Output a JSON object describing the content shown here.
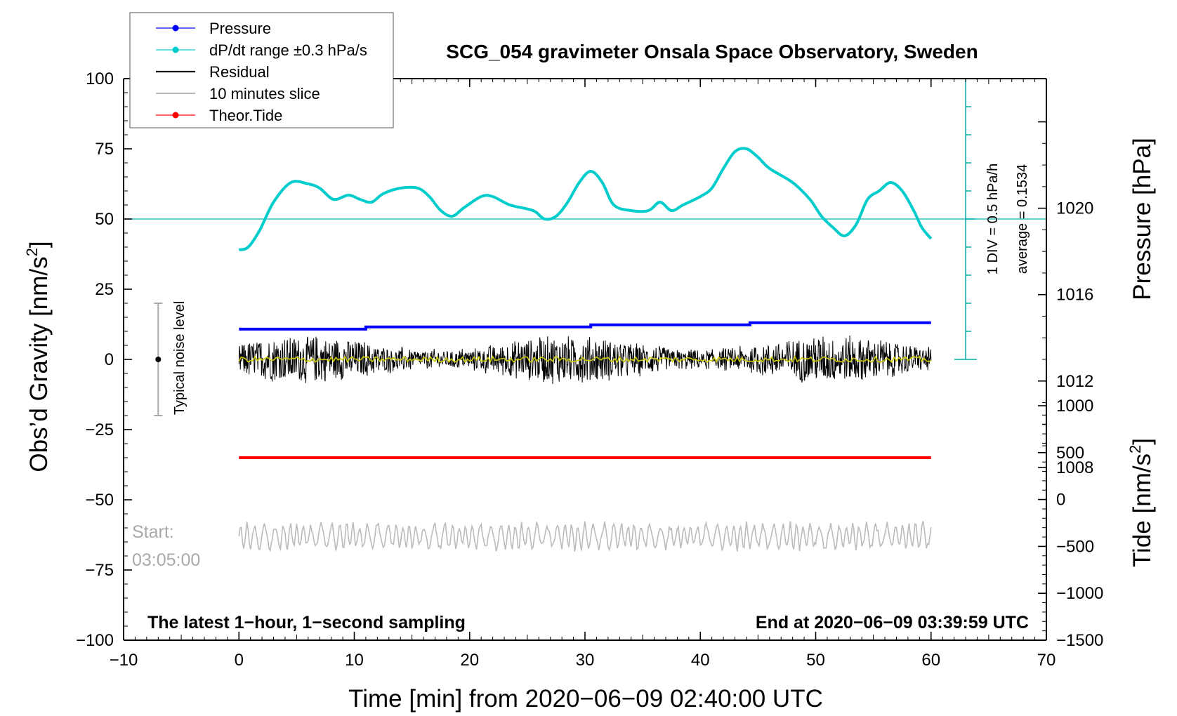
{
  "chart_data": {
    "type": "line",
    "title": "SCG_054 gravimeter Onsala Space Observatory, Sweden",
    "xlabel": "Time [min] from 2020−06−09 02:40:00 UTC",
    "xlim": [
      -10,
      70
    ],
    "x_ticks": [
      -10,
      0,
      10,
      20,
      30,
      40,
      50,
      60,
      70
    ],
    "x_tick_labels": [
      "−10",
      "0",
      "10",
      "20",
      "30",
      "40",
      "50",
      "60",
      "70"
    ],
    "left_axis": {
      "label": "Obs’d Gravity [nm/s",
      "label_sup": "2",
      "label_close": "]",
      "ylim": [
        -100,
        100
      ],
      "ticks": [
        -100,
        -75,
        -50,
        -25,
        0,
        25,
        50,
        75,
        100
      ],
      "tick_labels": [
        "−100",
        "−75",
        "−50",
        "−25",
        "0",
        "25",
        "50",
        "75",
        "100"
      ]
    },
    "pressure_axis": {
      "label": "Pressure [hPa]",
      "range": [
        1000,
        1026
      ],
      "ticks": [
        1008,
        1012,
        1016,
        1020
      ],
      "tick_labels": [
        "1008",
        "1012",
        "1016",
        "1020"
      ]
    },
    "tide_axis": {
      "label": "Tide [nm/s",
      "label_sup": "2",
      "label_close": "]",
      "range": [
        -1500,
        1000
      ],
      "ticks": [
        -1500,
        -1000,
        -500,
        0,
        500,
        1000
      ],
      "tick_labels": [
        "−1500",
        "−1000",
        "−500",
        "0",
        "500",
        "1000"
      ]
    },
    "legend": {
      "placement": "top-left",
      "entries": [
        {
          "label": "Pressure",
          "color": "#0000ff",
          "marker": true
        },
        {
          "label": "dP/dt range ±0.3 hPa/s",
          "color": "#00cccc",
          "marker": true
        },
        {
          "label": "Residual",
          "color": "#000000",
          "marker": false
        },
        {
          "label": "10 minutes slice",
          "color": "#bbbbbb",
          "marker": false
        },
        {
          "label": "Theor.Tide",
          "color": "#ff0000",
          "marker": true
        }
      ]
    },
    "series": [
      {
        "name": "Pressure",
        "axis": "pressure",
        "color": "#0000ff",
        "points": [
          [
            0,
            1014.4
          ],
          [
            11,
            1014.4
          ],
          [
            11,
            1014.5
          ],
          [
            30.5,
            1014.5
          ],
          [
            30.5,
            1014.6
          ],
          [
            44.3,
            1014.6
          ],
          [
            44.3,
            1014.7
          ],
          [
            60,
            1014.7
          ]
        ]
      },
      {
        "name": "dP/dt range ±0.3 hPa/s",
        "axis": "gravity",
        "color": "#00cccc",
        "points": [
          [
            0,
            39
          ],
          [
            0.8,
            40
          ],
          [
            1.8,
            46
          ],
          [
            3,
            56
          ],
          [
            4.5,
            63
          ],
          [
            6,
            62.5
          ],
          [
            7,
            61
          ],
          [
            8.2,
            57
          ],
          [
            9.5,
            58.5
          ],
          [
            10.5,
            57
          ],
          [
            11.5,
            56
          ],
          [
            12.5,
            59
          ],
          [
            14,
            61
          ],
          [
            15.5,
            61
          ],
          [
            16.5,
            58
          ],
          [
            17.5,
            53
          ],
          [
            18.5,
            51
          ],
          [
            19.5,
            54
          ],
          [
            21,
            58
          ],
          [
            22,
            58
          ],
          [
            23.5,
            55
          ],
          [
            25.5,
            53
          ],
          [
            26.5,
            50
          ],
          [
            27.5,
            51
          ],
          [
            28.5,
            56
          ],
          [
            29.5,
            63
          ],
          [
            30.5,
            67
          ],
          [
            31.5,
            63
          ],
          [
            32.5,
            55
          ],
          [
            34,
            53
          ],
          [
            35.5,
            53
          ],
          [
            36.5,
            56
          ],
          [
            37.5,
            53
          ],
          [
            38.5,
            55
          ],
          [
            40,
            58
          ],
          [
            41,
            61
          ],
          [
            42,
            68
          ],
          [
            43,
            74
          ],
          [
            44,
            75
          ],
          [
            45,
            72
          ],
          [
            46,
            68
          ],
          [
            48,
            63
          ],
          [
            49.5,
            57
          ],
          [
            50.5,
            51
          ],
          [
            51.5,
            47
          ],
          [
            52.5,
            44
          ],
          [
            53.5,
            48
          ],
          [
            54.5,
            57
          ],
          [
            55.5,
            60
          ],
          [
            56.5,
            63
          ],
          [
            57.5,
            60
          ],
          [
            58.5,
            53
          ],
          [
            59.2,
            47
          ],
          [
            60,
            43
          ]
        ]
      },
      {
        "name": "Residual",
        "axis": "gravity",
        "color": "#000000",
        "x_range": [
          0,
          60
        ],
        "center": 0,
        "amplitude_max": 10
      },
      {
        "name": "Residual smoothed",
        "axis": "gravity",
        "color": "#cccc00",
        "x_range": [
          0,
          60
        ],
        "center": 0,
        "amplitude_max": 1
      },
      {
        "name": "Theor.Tide",
        "axis": "gravity",
        "color": "#ff0000",
        "x_range": [
          0,
          60
        ],
        "value": -35
      },
      {
        "name": "10 minutes slice",
        "axis": "gravity",
        "color": "#bbbbbb",
        "x_range": [
          0,
          60
        ],
        "center": -63,
        "amplitude_max": 10
      }
    ],
    "reference_line": {
      "value": 50,
      "color": "#00bbbb"
    },
    "rate_scale": {
      "color": "#00aaaa",
      "x_value": 63,
      "y_range": [
        0,
        100
      ],
      "major_step": 50,
      "minor_step": 10,
      "label": "1 DIV = 0.5 hPa/h",
      "average_label": "average = 0.1534"
    },
    "noise_bar": {
      "x_value": -7,
      "center": 0,
      "range": [
        -20,
        20
      ],
      "label": "Typical noise level"
    },
    "annotations": {
      "start_label": "Start:",
      "start_time": "03:05:00",
      "bottom_left": "The latest 1−hour, 1−second sampling",
      "bottom_right": "End at 2020−06−09 03:39:59 UTC"
    }
  }
}
